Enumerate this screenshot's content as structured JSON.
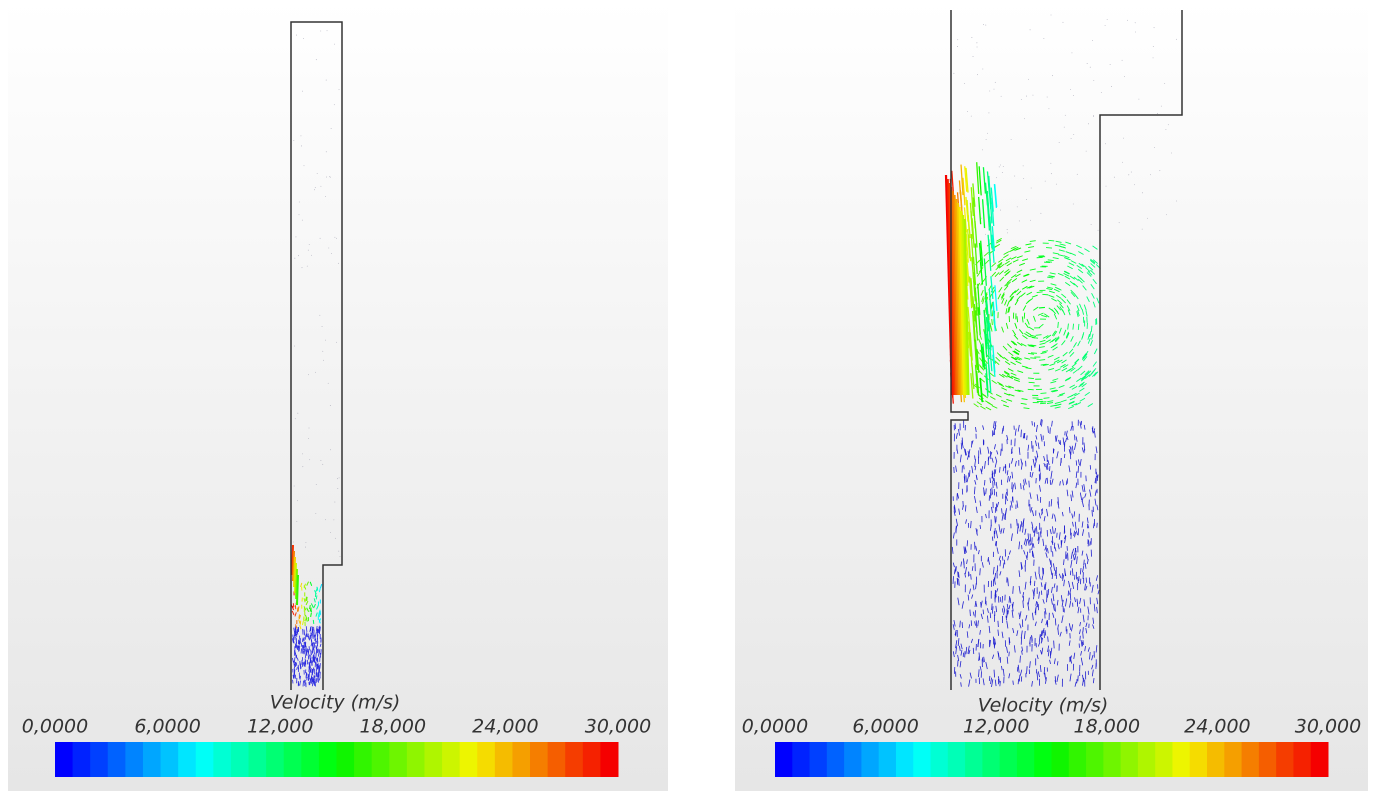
{
  "panels": [
    {
      "legend": {
        "title": "Velocity (m/s)",
        "ticks": [
          "0,0000",
          "6,0000",
          "12,000",
          "18,000",
          "24,000",
          "30,000"
        ]
      }
    },
    {
      "legend": {
        "title": "Velocity (m/s)",
        "ticks": [
          "0,0000",
          "6,0000",
          "12,000",
          "18,000",
          "24,000",
          "30,000"
        ]
      }
    }
  ]
}
